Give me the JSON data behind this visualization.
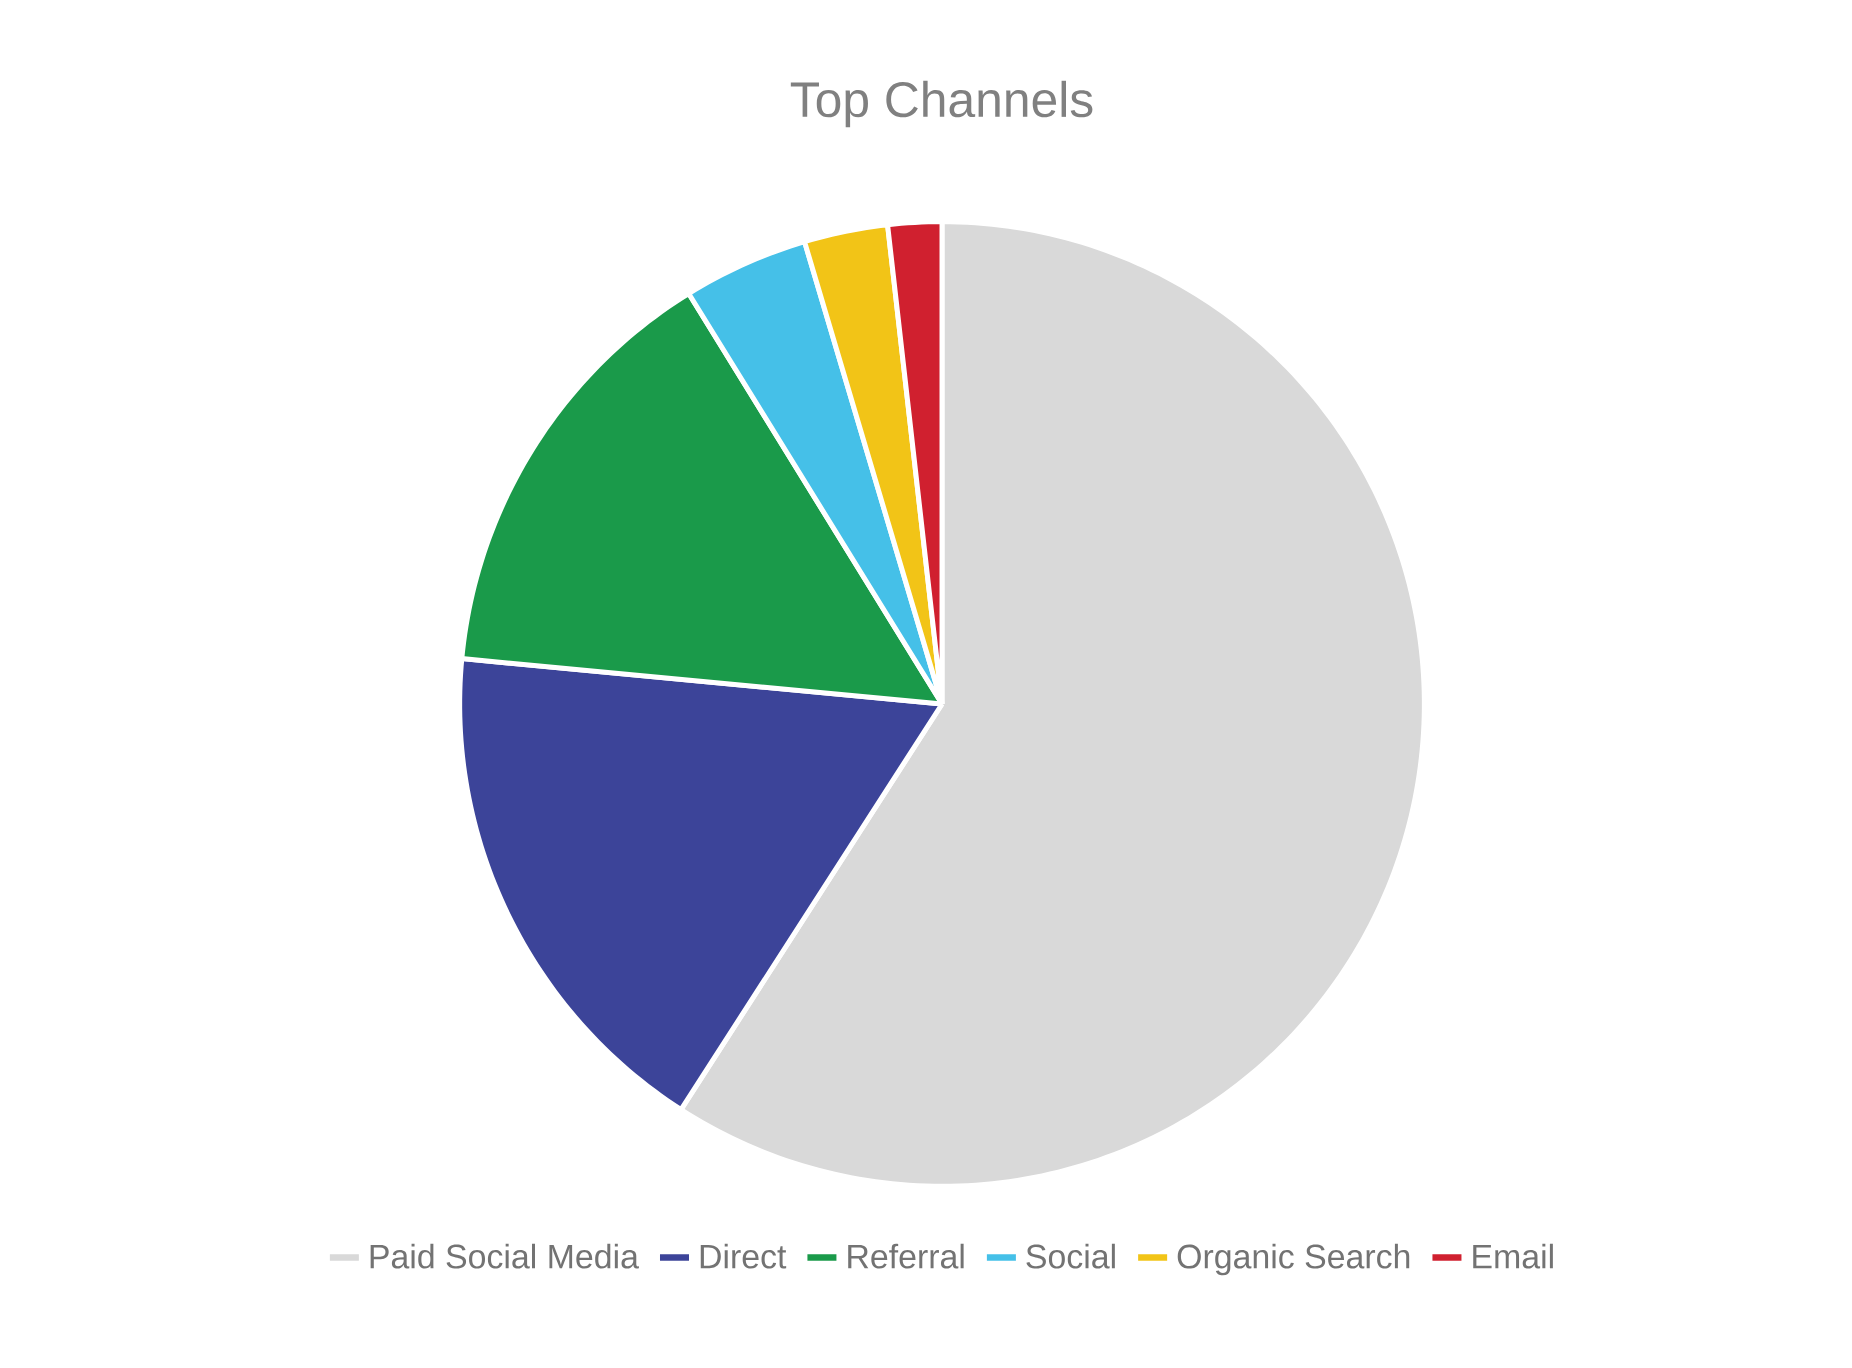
{
  "chart_data": {
    "type": "pie",
    "title": "Top Channels",
    "categories": [
      "Paid Social Media",
      "Direct",
      "Referral",
      "Social",
      "Organic Search",
      "Email"
    ],
    "values": [
      59.1,
      17.4,
      14.7,
      4.2,
      2.8,
      1.8
    ],
    "colors": [
      "#d9d9d9",
      "#3c4499",
      "#1a9a4a",
      "#45c0e8",
      "#f2c417",
      "#d0202f"
    ],
    "legend": "bottom"
  }
}
